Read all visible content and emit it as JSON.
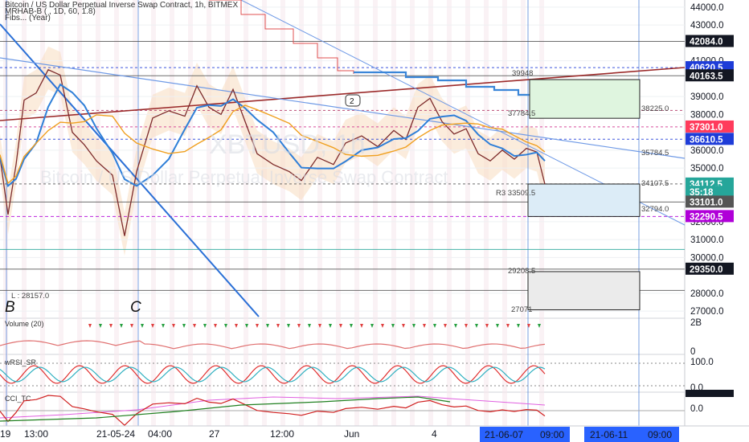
{
  "title": "Bitcoin / US Dollar Perpetual Inverse Swap Contract, 1h, BITMEX",
  "indicators": [
    "MRHAB-B ( , 1D, 60, 1.8)",
    "Fibs... (Year)"
  ],
  "watermark": "XBTUSD, 1h",
  "watermark_sub": "Bitcoin / US Dollar Perpetual Inverse Swap Contract",
  "chart_data": {
    "type": "line",
    "price_axis": {
      "ylim": [
        26600,
        44400
      ],
      "ticks": [
        "44000.0",
        "43000.0",
        "41000.0",
        "39000.0",
        "38000.0",
        "36000.0",
        "35000.0",
        "32000.0",
        "31000.0",
        "30000.0",
        "28000.0",
        "27000.0"
      ],
      "tick_values": [
        44000,
        43000,
        41000,
        39000,
        38000,
        36000,
        35000,
        32000,
        31000,
        30000,
        28000,
        27000
      ]
    },
    "price_series": [
      {
        "x": 0,
        "y": 35600
      },
      {
        "x": 10,
        "y": 32400
      },
      {
        "x": 20,
        "y": 35200
      },
      {
        "x": 30,
        "y": 38800
      },
      {
        "x": 45,
        "y": 39200
      },
      {
        "x": 60,
        "y": 40500
      },
      {
        "x": 75,
        "y": 40200
      },
      {
        "x": 90,
        "y": 37000
      },
      {
        "x": 105,
        "y": 36300
      },
      {
        "x": 120,
        "y": 35400
      },
      {
        "x": 140,
        "y": 34600
      },
      {
        "x": 155,
        "y": 31200
      },
      {
        "x": 170,
        "y": 34800
      },
      {
        "x": 190,
        "y": 37800
      },
      {
        "x": 210,
        "y": 38200
      },
      {
        "x": 230,
        "y": 37900
      },
      {
        "x": 245,
        "y": 39600
      },
      {
        "x": 260,
        "y": 38400
      },
      {
        "x": 275,
        "y": 38000
      },
      {
        "x": 290,
        "y": 39400
      },
      {
        "x": 305,
        "y": 37600
      },
      {
        "x": 320,
        "y": 35800
      },
      {
        "x": 340,
        "y": 35200
      },
      {
        "x": 360,
        "y": 34800
      },
      {
        "x": 375,
        "y": 34300
      },
      {
        "x": 395,
        "y": 35600
      },
      {
        "x": 415,
        "y": 35200
      },
      {
        "x": 430,
        "y": 36400
      },
      {
        "x": 450,
        "y": 36800
      },
      {
        "x": 470,
        "y": 36200
      },
      {
        "x": 490,
        "y": 37100
      },
      {
        "x": 505,
        "y": 36600
      },
      {
        "x": 520,
        "y": 38400
      },
      {
        "x": 535,
        "y": 38900
      },
      {
        "x": 550,
        "y": 37600
      },
      {
        "x": 565,
        "y": 36900
      },
      {
        "x": 580,
        "y": 37200
      },
      {
        "x": 595,
        "y": 35800
      },
      {
        "x": 610,
        "y": 35400
      },
      {
        "x": 625,
        "y": 36000
      },
      {
        "x": 640,
        "y": 35500
      },
      {
        "x": 655,
        "y": 36100
      },
      {
        "x": 668,
        "y": 35900
      },
      {
        "x": 678,
        "y": 34100
      }
    ],
    "price_labels": [
      {
        "value": "42084.0",
        "price": 42084,
        "color": "#131722",
        "text_color": "#ffffff"
      },
      {
        "value": "40620.5",
        "price": 40620.5,
        "color": "#1e3cd8",
        "text_color": "#ffffff"
      },
      {
        "value": "40163.5",
        "price": 40163.5,
        "color": "#131722",
        "text_color": "#ffffff"
      },
      {
        "value": "37301.0",
        "price": 37301,
        "color": "#ff3b5c",
        "text_color": "#ffffff"
      },
      {
        "value": "36610.5",
        "price": 36610.5,
        "color": "#1e3cd8",
        "text_color": "#ffffff"
      },
      {
        "value": "34112.5",
        "price": 34112.5,
        "color": "#26a69a",
        "text_color": "#ffffff"
      },
      {
        "value": "35:18",
        "price": 33650,
        "color": "#26a69a",
        "text_color": "#ffffff"
      },
      {
        "value": "33101.0",
        "price": 33101,
        "color": "#555555",
        "text_color": "#ffffff"
      },
      {
        "value": "32290.5",
        "price": 32290.5,
        "color": "#b000d8",
        "text_color": "#ffffff"
      },
      {
        "value": "29350.0",
        "price": 29350,
        "color": "#131722",
        "text_color": "#ffffff"
      }
    ],
    "level_annotations": [
      {
        "text": "39948",
        "price": 39948
      },
      {
        "text": "38225.0",
        "price": 38225
      },
      {
        "text": "37784.5",
        "price": 37784.5
      },
      {
        "text": "35784.5",
        "price": 35784.5
      },
      {
        "text": "34107.5",
        "price": 34107.5
      },
      {
        "text": "R3 33509.5",
        "price": 33509.5
      },
      {
        "text": "32794.0",
        "price": 32794
      },
      {
        "text": "29208.5",
        "price": 29208.5
      },
      {
        "text": "27071",
        "price": 27071
      },
      {
        "text": "L : 28157.0",
        "price": 28157
      }
    ],
    "wave_labels": [
      "B",
      "C"
    ],
    "wave_marker": "2",
    "time_axis": {
      "ticks": [
        "19",
        "13:00",
        "21-05-24",
        "04:00",
        "27",
        "12:00",
        "Jun",
        "4",
        "21-06-07",
        "09:00",
        "21-06-11",
        "09:00"
      ]
    },
    "volume_pane": {
      "label": "Volume (20)",
      "ticks": [
        "2B",
        "0"
      ],
      "tick_values": [
        2,
        0
      ]
    },
    "rsi_pane": {
      "label": "wRSI_SR",
      "ticks": [
        "100.0",
        "0.0"
      ],
      "tick_values": [
        100,
        0
      ]
    },
    "cci_pane": {
      "label": "CCI_TC",
      "ticks": [
        "0.0"
      ],
      "tick_values": [
        0
      ]
    }
  }
}
